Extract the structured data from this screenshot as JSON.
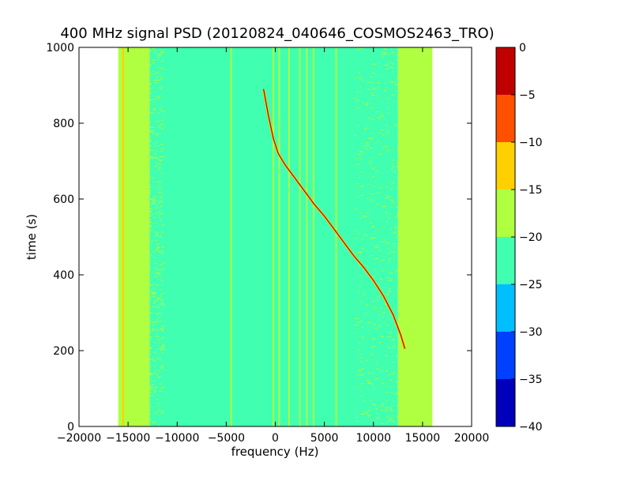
{
  "chart_data": {
    "type": "heatmap",
    "title": "400 MHz signal PSD (20120824_040646_COSMOS2463_TRO)",
    "xlabel": "frequency (Hz)",
    "ylabel": "time (s)",
    "xlim": [
      -20000,
      20000
    ],
    "ylim": [
      0,
      1000
    ],
    "x_ticks": [
      -20000,
      -15000,
      -10000,
      -5000,
      0,
      5000,
      10000,
      15000,
      20000
    ],
    "x_tick_labels": [
      "−20000",
      "−15000",
      "−10000",
      "−5000",
      "0",
      "5000",
      "10000",
      "15000",
      "20000"
    ],
    "y_ticks": [
      0,
      200,
      400,
      600,
      800,
      1000
    ],
    "y_tick_labels": [
      "0",
      "200",
      "400",
      "600",
      "800",
      "1000"
    ],
    "data_extent": {
      "freq_min": -16000,
      "freq_max": 16000,
      "time_min": 0,
      "time_max": 1000
    },
    "background_bands": [
      {
        "freq_start": -16000,
        "freq_end": -12800,
        "level_db": -17.5
      },
      {
        "freq_start": -12800,
        "freq_end": 12500,
        "level_db": -22.5
      },
      {
        "freq_start": 12500,
        "freq_end": 16000,
        "level_db": -17.5
      }
    ],
    "noise_speckle_bands": [
      {
        "freq_start": -13500,
        "freq_end": -11500
      },
      {
        "freq_start": 8000,
        "freq_end": 13000
      }
    ],
    "vertical_lines": [
      {
        "freq": -15500,
        "level_db": -15
      },
      {
        "freq": -15000,
        "level_db": -17.5
      },
      {
        "freq": -4500,
        "level_db": -17.5
      },
      {
        "freq": -200,
        "level_db": -17.5
      },
      {
        "freq": 400,
        "level_db": -17.5
      },
      {
        "freq": 1400,
        "level_db": -17.5
      },
      {
        "freq": 2500,
        "level_db": -17.5
      },
      {
        "freq": 3200,
        "level_db": -17.5
      },
      {
        "freq": 3900,
        "level_db": -17.5
      },
      {
        "freq": 6200,
        "level_db": -17.5
      }
    ],
    "doppler_trace": {
      "level_db": -5,
      "points": [
        [
          -1200,
          890
        ],
        [
          -700,
          820
        ],
        [
          -200,
          760
        ],
        [
          300,
          720
        ],
        [
          1000,
          690
        ],
        [
          2000,
          655
        ],
        [
          3000,
          620
        ],
        [
          4000,
          585
        ],
        [
          5000,
          555
        ],
        [
          6000,
          520
        ],
        [
          7000,
          485
        ],
        [
          8000,
          450
        ],
        [
          9000,
          420
        ],
        [
          10000,
          385
        ],
        [
          11000,
          345
        ],
        [
          12000,
          295
        ],
        [
          12800,
          240
        ],
        [
          13200,
          205
        ]
      ]
    },
    "colorbar": {
      "ticks": [
        0,
        -5,
        -10,
        -15,
        -20,
        -25,
        -30,
        -35,
        -40
      ],
      "tick_labels": [
        "0",
        "−5",
        "−10",
        "−15",
        "−20",
        "−25",
        "−30",
        "−35",
        "−40"
      ],
      "range": [
        -40,
        0
      ],
      "bands": [
        {
          "from": -40,
          "to": -35,
          "color": "#0000bb"
        },
        {
          "from": -35,
          "to": -30,
          "color": "#0040ff"
        },
        {
          "from": -30,
          "to": -25,
          "color": "#00bfff"
        },
        {
          "from": -25,
          "to": -20,
          "color": "#40ffb0"
        },
        {
          "from": -20,
          "to": -15,
          "color": "#b0ff40"
        },
        {
          "from": -15,
          "to": -10,
          "color": "#ffd000"
        },
        {
          "from": -10,
          "to": -5,
          "color": "#ff5000"
        },
        {
          "from": -5,
          "to": 0,
          "color": "#c00000"
        }
      ]
    }
  }
}
